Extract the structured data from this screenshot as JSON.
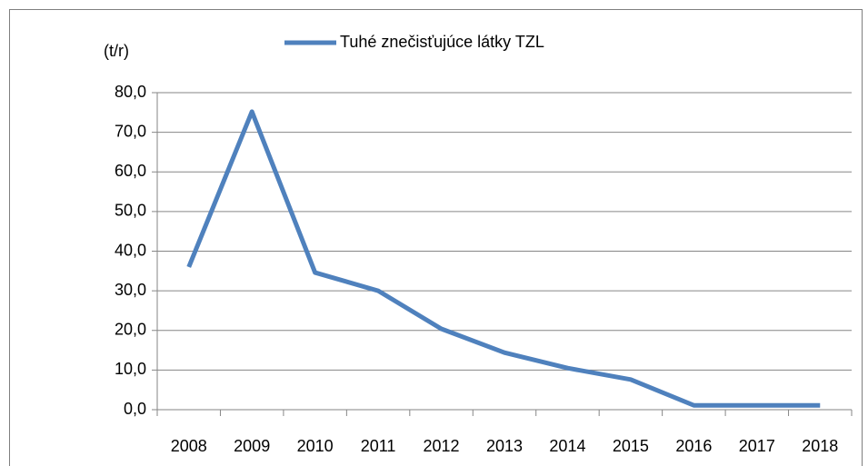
{
  "chart_data": {
    "type": "line",
    "y_label": "(t/r)",
    "categories": [
      "2008",
      "2009",
      "2010",
      "2011",
      "2012",
      "2013",
      "2014",
      "2015",
      "2016",
      "2017",
      "2018"
    ],
    "series": [
      {
        "name": "Tuhé znečisťujúce látky TZL",
        "color": "#4f81bd",
        "values": [
          36.0,
          75.2,
          34.6,
          30.0,
          20.4,
          14.4,
          10.5,
          7.6,
          1.1,
          1.1,
          1.1
        ]
      }
    ],
    "ylim": [
      0,
      80
    ],
    "yticks": [
      {
        "value": 0,
        "label": "0,0"
      },
      {
        "value": 10,
        "label": "10,0"
      },
      {
        "value": 20,
        "label": "20,0"
      },
      {
        "value": 30,
        "label": "30,0"
      },
      {
        "value": 40,
        "label": "40,0"
      },
      {
        "value": 50,
        "label": "50,0"
      },
      {
        "value": 60,
        "label": "60,0"
      },
      {
        "value": 70,
        "label": "70,0"
      },
      {
        "value": 80,
        "label": "80,0"
      }
    ],
    "grid": true,
    "legend": "top"
  }
}
